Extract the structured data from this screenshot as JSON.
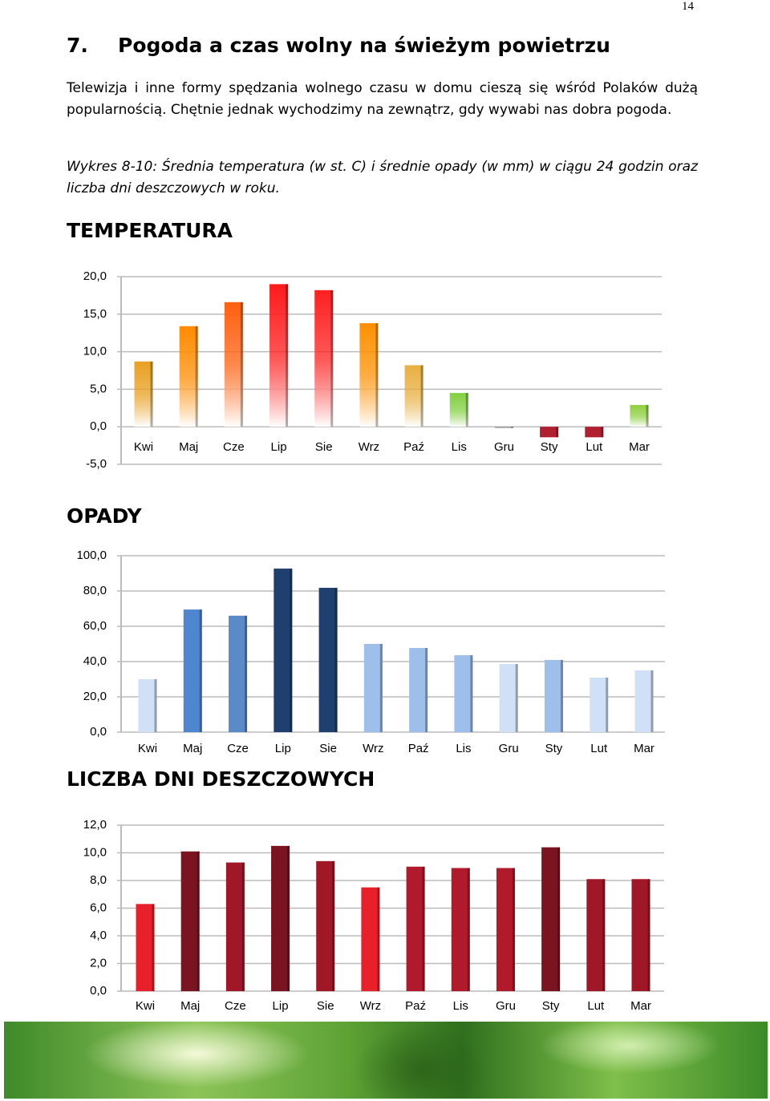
{
  "page_number": "14",
  "heading": {
    "number": "7.",
    "title": "Pogoda a czas wolny na świeżym powietrzu"
  },
  "paragraph": "Telewizja i inne formy spędzania wolnego czasu w domu cieszą się wśród Polaków dużą popularnością. Chętnie jednak wychodzimy na zewnątrz, gdy wywabi nas dobra pogoda.",
  "caption": "Wykres 8-10: Średnia temperatura (w st. C) i średnie opady (w mm) w ciągu 24 godzin oraz liczba dni deszczowych w roku.",
  "chart_data": [
    {
      "type": "bar",
      "title": "TEMPERATURA",
      "categories": [
        "Kwi",
        "Maj",
        "Cze",
        "Lip",
        "Sie",
        "Wrz",
        "Paź",
        "Lis",
        "Gru",
        "Sty",
        "Lut",
        "Mar"
      ],
      "values": [
        8.7,
        13.4,
        16.6,
        19.0,
        18.2,
        13.8,
        8.2,
        4.5,
        -0.1,
        -1.4,
        -1.4,
        2.9
      ],
      "colors": [
        "#e8a020",
        "#ff8a00",
        "#ff6010",
        "#ff1a1a",
        "#ff2020",
        "#ff9000",
        "#e8b040",
        "#80d040",
        "#999999",
        "#b02030",
        "#b02030",
        "#8fd040"
      ],
      "gradient": true,
      "ylim": [
        -5,
        20
      ],
      "yticks": [
        {
          "value": -5,
          "label": "-5,0"
        },
        {
          "value": 0,
          "label": "0,0"
        },
        {
          "value": 5,
          "label": "5,0"
        },
        {
          "value": 10,
          "label": "10,0"
        },
        {
          "value": 15,
          "label": "15,0"
        },
        {
          "value": 20,
          "label": "20,0"
        }
      ],
      "grid": true
    },
    {
      "type": "bar",
      "title": "OPADY",
      "categories": [
        "Kwi",
        "Maj",
        "Cze",
        "Lip",
        "Sie",
        "Wrz",
        "Paź",
        "Lis",
        "Gru",
        "Sty",
        "Lut",
        "Mar"
      ],
      "values": [
        30,
        69.5,
        66,
        92.7,
        81.8,
        50,
        47.7,
        43.6,
        38.6,
        40.9,
        30.9,
        35
      ],
      "colors": [
        "#cfe0f7",
        "#4f86d0",
        "#5a8ac8",
        "#1f3f6e",
        "#1f3f6e",
        "#9dbfea",
        "#9dbfea",
        "#9dbfea",
        "#cfe0f7",
        "#9dbfea",
        "#cfe0f7",
        "#cfe0f7"
      ],
      "gradient": false,
      "ylim": [
        0,
        100
      ],
      "yticks": [
        {
          "value": 0,
          "label": "0,0"
        },
        {
          "value": 20,
          "label": "20,0"
        },
        {
          "value": 40,
          "label": "40,0"
        },
        {
          "value": 60,
          "label": "60,0"
        },
        {
          "value": 80,
          "label": "80,0"
        },
        {
          "value": 100,
          "label": "100,0"
        }
      ],
      "grid": true
    },
    {
      "type": "bar",
      "title": "LICZBA DNI DESZCZOWYCH",
      "categories": [
        "Kwi",
        "Maj",
        "Cze",
        "Lip",
        "Sie",
        "Wrz",
        "Paź",
        "Lis",
        "Gru",
        "Sty",
        "Lut",
        "Mar"
      ],
      "values": [
        6.3,
        10.1,
        9.3,
        10.5,
        9.4,
        7.5,
        9.0,
        8.9,
        8.9,
        10.4,
        8.1,
        8.1
      ],
      "colors": [
        "#e8202a",
        "#7a1420",
        "#a01828",
        "#7a1420",
        "#a01828",
        "#e8202a",
        "#b01a2a",
        "#b01a2a",
        "#b01a2a",
        "#7a1420",
        "#a01828",
        "#a01828"
      ],
      "gradient": false,
      "ylim": [
        0,
        12
      ],
      "yticks": [
        {
          "value": 0,
          "label": "0,0"
        },
        {
          "value": 2,
          "label": "2,0"
        },
        {
          "value": 4,
          "label": "4,0"
        },
        {
          "value": 6,
          "label": "6,0"
        },
        {
          "value": 8,
          "label": "8,0"
        },
        {
          "value": 10,
          "label": "10,0"
        },
        {
          "value": 12,
          "label": "12,0"
        }
      ],
      "grid": true
    }
  ]
}
